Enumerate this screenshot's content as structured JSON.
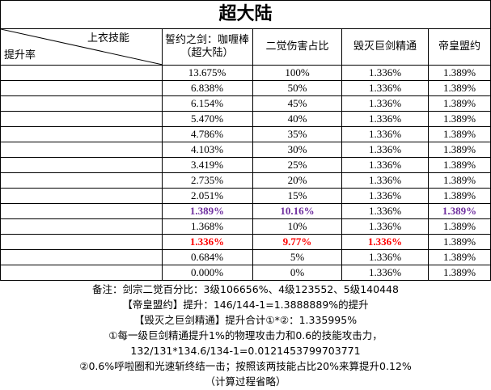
{
  "title": "超大陆",
  "corner": {
    "top": "上衣技能",
    "bottom": "提升率"
  },
  "columns": [
    "誓约之剑：咖喱棒\n（超大陆）",
    "二觉伤害占比",
    "毁灭巨剑精通",
    "帝皇盟约"
  ],
  "rows": [
    [
      "13.675%",
      "100%",
      "1.336%",
      "1.389%"
    ],
    [
      "6.838%",
      "50%",
      "1.336%",
      "1.389%"
    ],
    [
      "6.154%",
      "45%",
      "1.336%",
      "1.389%"
    ],
    [
      "5.470%",
      "40%",
      "1.336%",
      "1.389%"
    ],
    [
      "4.786%",
      "35%",
      "1.336%",
      "1.389%"
    ],
    [
      "4.103%",
      "30%",
      "1.336%",
      "1.389%"
    ],
    [
      "3.419%",
      "25%",
      "1.336%",
      "1.389%"
    ],
    [
      "2.735%",
      "20%",
      "1.336%",
      "1.389%"
    ],
    [
      "2.051%",
      "15%",
      "1.336%",
      "1.389%"
    ],
    [
      "1.389%",
      "10.16%",
      "1.336%",
      "1.389%"
    ],
    [
      "1.368%",
      "10%",
      "1.336%",
      "1.389%"
    ],
    [
      "1.336%",
      "9.77%",
      "1.336%",
      "1.389%"
    ],
    [
      "0.684%",
      "5%",
      "1.336%",
      "1.389%"
    ],
    [
      "0.000%",
      "0%",
      "1.336%",
      "1.389%"
    ]
  ],
  "emphasis": [
    {
      "row": 9,
      "cols": [
        0,
        1,
        3
      ],
      "color": "#7030a0"
    },
    {
      "row": 11,
      "cols": [
        0,
        1,
        2
      ],
      "color": "#ff0000"
    }
  ],
  "notes": [
    "备注：剑宗二觉百分比：3级106656%、4级123552、5级140448",
    "【帝皇盟约】提升：146/144-1=1.3888889%的提升",
    "【毁灭之巨剑精通】提升合计①*②：1.335995%",
    "①每一级巨剑精通提升1%的物理攻击力和0.6的技能攻击力，",
    "132/131*134.6/134-1=0.0121453799703771",
    "②0.6%呼啦圈和光速斩终结一击；按照该两技能占比20%来算提升0.12%",
    "（计算过程省略）"
  ]
}
